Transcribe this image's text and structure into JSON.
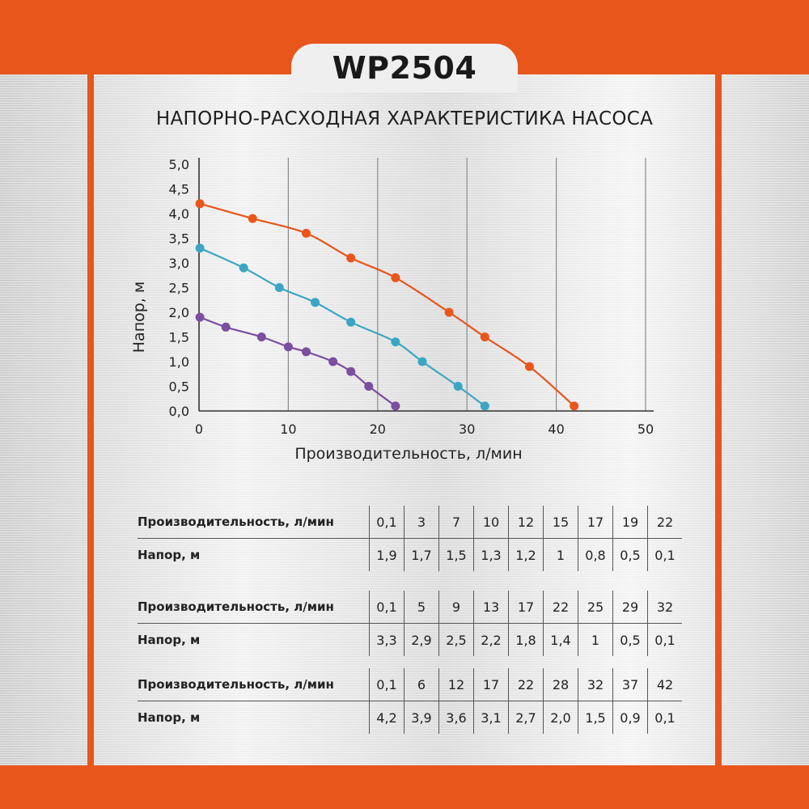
{
  "model": "WP2504",
  "chart_data": {
    "type": "line",
    "title": "НАПОРНО-РАСХОДНАЯ ХАРАКТЕРИСТИКА НАСОСА",
    "xlabel": "Производительность, л/мин",
    "ylabel": "Напор, м",
    "xlim": [
      0,
      50
    ],
    "ylim": [
      0,
      5
    ],
    "x_ticks": [
      "0",
      "10",
      "20",
      "30",
      "40",
      "50"
    ],
    "y_ticks": [
      "0,0",
      "0,5",
      "1,0",
      "1,5",
      "2,0",
      "2,5",
      "3,0",
      "3,5",
      "4,0",
      "4,5",
      "5,0"
    ],
    "grid": "vertical",
    "series": [
      {
        "color": "#7b4ea0",
        "x": [
          0.1,
          3,
          7,
          10,
          12,
          15,
          17,
          19,
          22
        ],
        "y": [
          1.9,
          1.7,
          1.5,
          1.3,
          1.2,
          1.0,
          0.8,
          0.5,
          0.1
        ]
      },
      {
        "color": "#3ba6c4",
        "x": [
          0.1,
          5,
          9,
          13,
          17,
          22,
          25,
          29,
          32
        ],
        "y": [
          3.3,
          2.9,
          2.5,
          2.2,
          1.8,
          1.4,
          1.0,
          0.5,
          0.1
        ]
      },
      {
        "color": "#e8561c",
        "x": [
          0.1,
          6,
          12,
          17,
          22,
          28,
          32,
          37,
          42
        ],
        "y": [
          4.2,
          3.9,
          3.6,
          3.1,
          2.7,
          2.0,
          1.5,
          0.9,
          0.1
        ]
      }
    ]
  },
  "tables": [
    {
      "flow_label": "Производительность, л/мин",
      "head_label": "Напор, м",
      "flow": [
        "0,1",
        "3",
        "7",
        "10",
        "12",
        "15",
        "17",
        "19",
        "22"
      ],
      "head": [
        "1,9",
        "1,7",
        "1,5",
        "1,3",
        "1,2",
        "1",
        "0,8",
        "0,5",
        "0,1"
      ]
    },
    {
      "flow_label": "Производительность, л/мин",
      "head_label": "Напор, м",
      "flow": [
        "0,1",
        "5",
        "9",
        "13",
        "17",
        "22",
        "25",
        "29",
        "32"
      ],
      "head": [
        "3,3",
        "2,9",
        "2,5",
        "2,2",
        "1,8",
        "1,4",
        "1",
        "0,5",
        "0,1"
      ]
    },
    {
      "flow_label": "Производительность, л/мин",
      "head_label": "Напор, м",
      "flow": [
        "0,1",
        "6",
        "12",
        "17",
        "22",
        "28",
        "32",
        "37",
        "42"
      ],
      "head": [
        "4,2",
        "3,9",
        "3,6",
        "3,1",
        "2,7",
        "2,0",
        "1,5",
        "0,9",
        "0,1"
      ]
    }
  ]
}
